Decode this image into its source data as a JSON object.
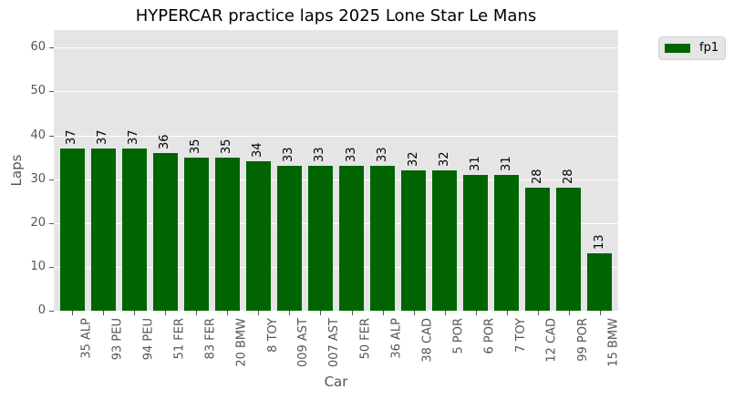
{
  "chart_data": {
    "type": "bar",
    "title": "HYPERCAR practice laps 2025 Lone Star Le Mans",
    "xlabel": "Car",
    "ylabel": "Laps",
    "ylim": [
      0,
      64
    ],
    "yticks": [
      0,
      10,
      20,
      30,
      40,
      50,
      60
    ],
    "grid": true,
    "legend_position": "upper right, outside",
    "bar_color": "#006400",
    "categories": [
      "35 ALP",
      "93 PEU",
      "94 PEU",
      "51 FER",
      "83 FER",
      "20 BMW",
      "8 TOY",
      "009 AST",
      "007 AST",
      "50 FER",
      "36 ALP",
      "38 CAD",
      "5 POR",
      "6 POR",
      "7 TOY",
      "12 CAD",
      "99 POR",
      "15 BMW"
    ],
    "series": [
      {
        "name": "fp1",
        "values": [
          37,
          37,
          37,
          36,
          35,
          35,
          34,
          33,
          33,
          33,
          33,
          32,
          32,
          31,
          31,
          28,
          28,
          13
        ]
      }
    ]
  },
  "legend": {
    "items": [
      {
        "label": "fp1",
        "color": "#006400"
      }
    ]
  }
}
